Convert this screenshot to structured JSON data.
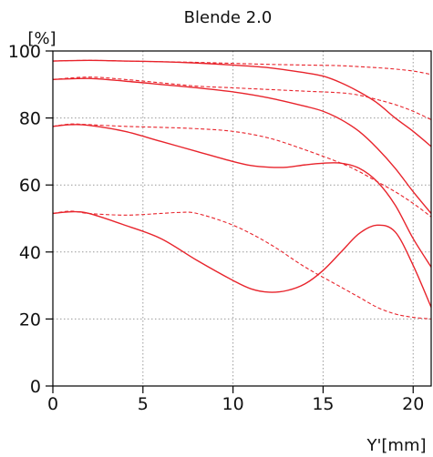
{
  "chart_data": {
    "type": "line",
    "title": "Blende 2.0",
    "ylabel": "[%]",
    "xlabel": "Y'[mm]",
    "xlim": [
      0,
      21
    ],
    "ylim": [
      0,
      100
    ],
    "x_ticks": [
      0,
      5,
      10,
      15,
      20
    ],
    "y_ticks": [
      0,
      20,
      40,
      60,
      80,
      100
    ],
    "grid": true,
    "line_color": "#e8242c",
    "series": [
      {
        "style": "solid",
        "x": [
          0,
          2,
          4,
          6,
          8,
          10,
          12,
          14,
          15,
          16,
          17,
          18,
          19,
          20,
          21
        ],
        "y": [
          97,
          97.2,
          97,
          96.8,
          96.4,
          95.8,
          95,
          93.5,
          92.5,
          90.5,
          87.8,
          84.5,
          80,
          76,
          71.5
        ]
      },
      {
        "style": "dashed",
        "x": [
          0,
          2,
          4,
          6,
          8,
          10,
          12,
          14,
          16,
          18,
          19,
          20,
          21
        ],
        "y": [
          97,
          97.2,
          97,
          96.8,
          96.6,
          96.3,
          96,
          95.8,
          95.6,
          95,
          94.6,
          94,
          93
        ]
      },
      {
        "style": "solid",
        "x": [
          0,
          2,
          4,
          6,
          8,
          10,
          12,
          14,
          15,
          16,
          17,
          18,
          19,
          20,
          21
        ],
        "y": [
          91.5,
          91.8,
          91,
          90,
          89,
          87.8,
          86,
          83.5,
          82,
          79.5,
          76,
          71,
          65,
          58,
          51.5
        ]
      },
      {
        "style": "dashed",
        "x": [
          0,
          2,
          4,
          6,
          8,
          10,
          12,
          14,
          16,
          17,
          18,
          19,
          20,
          21
        ],
        "y": [
          91.5,
          92.2,
          91.5,
          90.5,
          89.5,
          89,
          88.5,
          88,
          87.5,
          86.8,
          85.5,
          84,
          82,
          79.5
        ]
      },
      {
        "style": "solid",
        "x": [
          0,
          1,
          2,
          4,
          6,
          8,
          10,
          11,
          12,
          13,
          14,
          15,
          16,
          17,
          18,
          19,
          20,
          21
        ],
        "y": [
          77.5,
          78,
          77.8,
          76,
          73,
          70,
          67,
          65.8,
          65.3,
          65.3,
          66,
          66.5,
          66.5,
          65,
          61,
          54,
          44,
          35.5
        ]
      },
      {
        "style": "dashed",
        "x": [
          0,
          1,
          2,
          4,
          6,
          8,
          10,
          12,
          14,
          16,
          17,
          18,
          19,
          20,
          21
        ],
        "y": [
          77.5,
          78.2,
          78,
          77.5,
          77.2,
          76.8,
          76,
          74,
          70.5,
          66.5,
          64,
          61,
          58,
          54.5,
          50.5
        ]
      },
      {
        "style": "solid",
        "x": [
          0,
          1,
          2,
          4,
          6,
          8,
          10,
          11,
          12,
          13,
          14,
          15,
          16,
          17,
          18,
          19,
          20,
          21
        ],
        "y": [
          51.5,
          52,
          51.5,
          48,
          44,
          37.5,
          31.5,
          29,
          28,
          28.5,
          30.5,
          34.5,
          40,
          45.5,
          48,
          46,
          36,
          23.5
        ]
      },
      {
        "style": "dashed",
        "x": [
          0,
          1,
          2,
          4,
          6,
          7,
          8,
          10,
          12,
          14,
          16,
          17,
          18,
          19,
          20,
          21
        ],
        "y": [
          51.5,
          52.2,
          51.5,
          51,
          51.5,
          51.8,
          51.5,
          48,
          42.5,
          35.5,
          29.5,
          26.5,
          23.5,
          21.5,
          20.5,
          20
        ]
      }
    ]
  }
}
